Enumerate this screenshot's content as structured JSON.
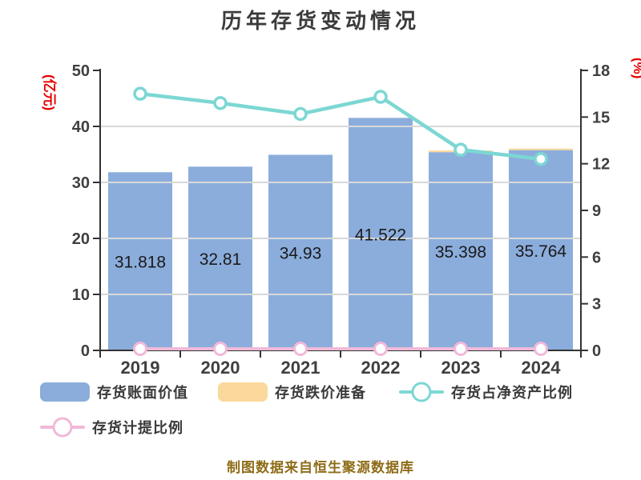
{
  "title": "历年存货变动情况",
  "source_note": "制图数据来自恒生聚源数据库",
  "colors": {
    "bar_blue": "#8BADDC",
    "bar_orange": "#FBD89B",
    "line_teal": "#7CD7D3",
    "line_pink": "#F0B9D8",
    "grid": "#D9D9D9",
    "axis": "#333333",
    "tick_text": "#3F3F3F",
    "bar_label_text": "#1A1A1A",
    "axis_name_red": "#E60000",
    "source_text": "#8E6C17"
  },
  "chart_data": {
    "type": "bar",
    "combo": "stacked bars on left axis + lines on right axis",
    "title": "历年存货变动情况",
    "categories": [
      "2019",
      "2020",
      "2021",
      "2022",
      "2023",
      "2024"
    ],
    "series": [
      {
        "name": "存货账面价值",
        "type": "bar",
        "axis": "left",
        "color": "#8BADDC",
        "values": [
          31.818,
          32.81,
          34.93,
          41.522,
          35.398,
          35.764
        ],
        "labels_visible": true
      },
      {
        "name": "存货跌价准备",
        "type": "bar",
        "axis": "left",
        "color": "#FBD89B",
        "values": [
          0,
          0,
          0,
          0,
          0.3,
          0.25
        ],
        "labels_visible": false
      },
      {
        "name": "存货占净资产比例",
        "type": "line",
        "axis": "right",
        "color": "#7CD7D3",
        "values": [
          16.5,
          15.9,
          15.2,
          16.3,
          12.9,
          12.3
        ],
        "labels_visible": false
      },
      {
        "name": "存货计提比例",
        "type": "line",
        "axis": "right",
        "color": "#F0B9D8",
        "values": [
          0.1,
          0.1,
          0.1,
          0.1,
          0.1,
          0.1
        ],
        "labels_visible": false
      }
    ],
    "left_axis": {
      "label": "(亿元)",
      "min": 0,
      "max": 50,
      "ticks": [
        0,
        10,
        20,
        30,
        40,
        50
      ]
    },
    "right_axis": {
      "label": "(%)",
      "min": 0,
      "max": 18,
      "ticks": [
        0,
        3,
        6,
        9,
        12,
        15,
        18
      ]
    },
    "grid": true,
    "legend_position": "bottom"
  },
  "legend": {
    "items": [
      {
        "label": "存货账面价值",
        "marker": "rect",
        "color": "#8BADDC"
      },
      {
        "label": "存货跌价准备",
        "marker": "rect",
        "color": "#FBD89B"
      },
      {
        "label": "存货占净资产比例",
        "marker": "line",
        "color": "#7CD7D3"
      },
      {
        "label": "存货计提比例",
        "marker": "line",
        "color": "#F0B9D8"
      }
    ]
  }
}
